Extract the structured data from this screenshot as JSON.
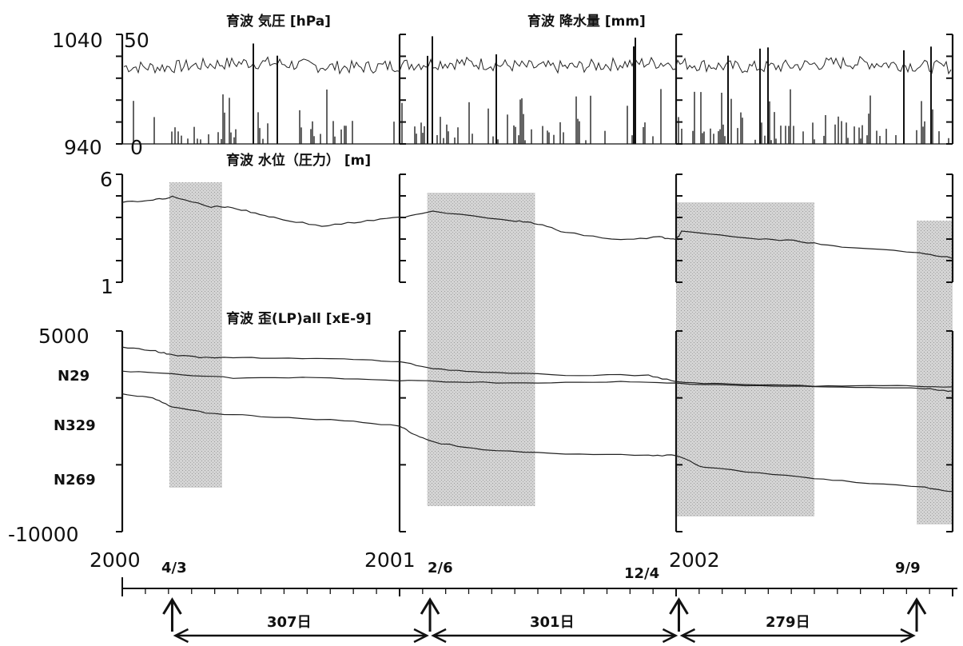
{
  "chart_data": [
    {
      "type": "line",
      "panel": "pressure-rainfall",
      "titles": [
        "育波 気圧 [hPa]",
        "育波 降水量 [mm]"
      ],
      "y_left": {
        "label": "気圧 [hPa]",
        "ticks": [
          "1040",
          "940"
        ],
        "ylim": [
          940,
          1040
        ]
      },
      "y_right": {
        "label": "降水量 [mm]",
        "ticks": [
          "50",
          "0"
        ],
        "ylim": [
          0,
          50
        ]
      },
      "series": [
        {
          "name": "気圧",
          "type": "line",
          "typical_value": 1012
        },
        {
          "name": "降水量",
          "type": "bar",
          "note": "daily rainfall spikes"
        }
      ]
    },
    {
      "type": "line",
      "panel": "water-level",
      "title": "育波 水位（圧力） [m]",
      "y_ticks": [
        "6",
        "1"
      ],
      "ylim": [
        1,
        6
      ],
      "series": [
        {
          "name": "水位",
          "x": [
            0.0,
            0.11,
            0.18,
            0.32,
            0.38,
            0.48,
            0.58,
            0.72,
            0.86,
            1.0,
            1.12,
            1.42,
            1.5,
            1.6,
            1.8,
            1.94,
            2.0,
            2.02,
            2.3,
            2.45,
            2.6,
            2.88,
            3.0
          ],
          "y": [
            4.7,
            4.8,
            4.95,
            4.5,
            4.5,
            4.2,
            3.9,
            3.6,
            3.8,
            4.0,
            4.3,
            3.85,
            3.7,
            3.3,
            2.95,
            3.1,
            2.95,
            3.35,
            3.0,
            2.9,
            2.6,
            2.4,
            2.1
          ]
        }
      ]
    },
    {
      "type": "line",
      "panel": "strain",
      "title": "育波 歪(LP)all [xE-9]",
      "y_ticks": [
        "5000",
        "-10000"
      ],
      "ylim": [
        -10000,
        5000
      ],
      "series_labels": [
        "N29",
        "N329",
        "N269"
      ],
      "series": [
        {
          "name": "N29",
          "x": [
            0.0,
            0.12,
            0.18,
            0.3,
            0.5,
            0.8,
            1.0,
            1.12,
            1.3,
            1.6,
            1.9,
            2.0,
            2.2,
            2.5,
            2.8,
            3.0
          ],
          "y": [
            3800,
            3500,
            3200,
            3000,
            3000,
            2900,
            2700,
            2200,
            1900,
            1700,
            1700,
            1200,
            1000,
            900,
            900,
            800
          ]
        },
        {
          "name": "N329",
          "x": [
            0.0,
            0.18,
            0.4,
            0.7,
            1.0,
            1.2,
            1.5,
            1.8,
            2.0,
            2.3,
            2.6,
            2.9,
            3.0
          ],
          "y": [
            2000,
            1800,
            1500,
            1500,
            1300,
            1200,
            1100,
            1200,
            1100,
            900,
            800,
            700,
            500
          ]
        },
        {
          "name": "N269",
          "x": [
            0.0,
            0.11,
            0.18,
            0.3,
            0.5,
            0.8,
            1.0,
            1.05,
            1.12,
            1.3,
            1.6,
            1.9,
            2.0,
            2.1,
            2.4,
            2.6,
            2.9,
            3.0
          ],
          "y": [
            300,
            0,
            -700,
            -1100,
            -1400,
            -1700,
            -2100,
            -2700,
            -3300,
            -3900,
            -4200,
            -4300,
            -4300,
            -5200,
            -5800,
            -6200,
            -6700,
            -7000
          ]
        }
      ]
    }
  ],
  "x_axis": {
    "year_labels": [
      "2000",
      "2001",
      "2002"
    ],
    "year_positions": [
      0,
      1,
      2
    ],
    "event_dates": [
      {
        "label": "4/3",
        "x": 0.18
      },
      {
        "label": "2/6",
        "x": 1.11
      },
      {
        "label": "12/4",
        "x": 2.01
      },
      {
        "label": "9/9",
        "x": 2.87
      }
    ],
    "shaded_periods": [
      [
        0.17,
        0.36
      ],
      [
        1.1,
        1.49
      ],
      [
        2.0,
        2.5
      ],
      [
        2.87,
        3.0
      ]
    ],
    "intervals": [
      {
        "label": "307日",
        "from": 0.18,
        "to": 1.11
      },
      {
        "label": "301日",
        "from": 1.11,
        "to": 2.01
      },
      {
        "label": "279日",
        "from": 2.01,
        "to": 2.87
      }
    ],
    "xlim": [
      0,
      3
    ]
  }
}
